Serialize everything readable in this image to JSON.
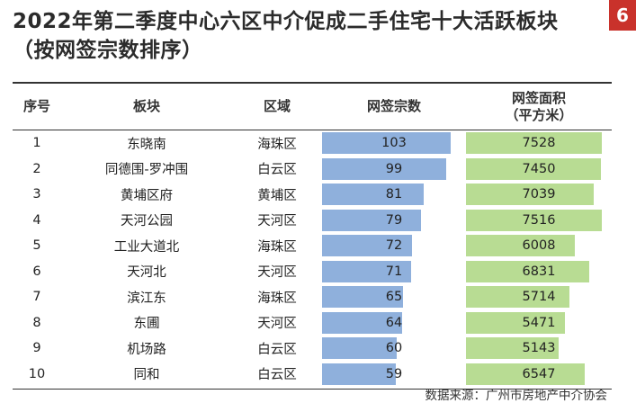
{
  "title": {
    "line1": "2022年第二季度中心六区中介促成二手住宅十大活跃板块",
    "line2": "（按网签宗数排序）"
  },
  "page_number": "6",
  "source": "数据来源：广州市房地产中介协会",
  "colors": {
    "count_bar": "#8fb0dc",
    "area_bar": "#b8dc93",
    "badge": "#c9322b"
  },
  "chart_data": {
    "type": "table",
    "title": "2022年第二季度中心六区中介促成二手住宅十大活跃板块（按网签宗数排序）",
    "columns": [
      "序号",
      "板块",
      "区域",
      "网签宗数",
      "网签面积（平方米）"
    ],
    "header": {
      "no": "序号",
      "area": "板块",
      "district": "区域",
      "count": "网签宗数",
      "sqm_line1": "网签面积",
      "sqm_line2": "（平方米）"
    },
    "rows": [
      {
        "no": "1",
        "area": "东晓南",
        "district": "海珠区",
        "count": 103,
        "sqm": 7528
      },
      {
        "no": "2",
        "area": "同德围-罗冲围",
        "district": "白云区",
        "count": 99,
        "sqm": 7450
      },
      {
        "no": "3",
        "area": "黄埔区府",
        "district": "黄埔区",
        "count": 81,
        "sqm": 7039
      },
      {
        "no": "4",
        "area": "天河公园",
        "district": "天河区",
        "count": 79,
        "sqm": 7516
      },
      {
        "no": "5",
        "area": "工业大道北",
        "district": "海珠区",
        "count": 72,
        "sqm": 6008
      },
      {
        "no": "6",
        "area": "天河北",
        "district": "天河区",
        "count": 71,
        "sqm": 6831
      },
      {
        "no": "7",
        "area": "滨江东",
        "district": "海珠区",
        "count": 65,
        "sqm": 5714
      },
      {
        "no": "8",
        "area": "东圃",
        "district": "天河区",
        "count": 64,
        "sqm": 5471
      },
      {
        "no": "9",
        "area": "机场路",
        "district": "白云区",
        "count": 60,
        "sqm": 5143
      },
      {
        "no": "10",
        "area": "同和",
        "district": "白云区",
        "count": 59,
        "sqm": 6547
      }
    ]
  }
}
